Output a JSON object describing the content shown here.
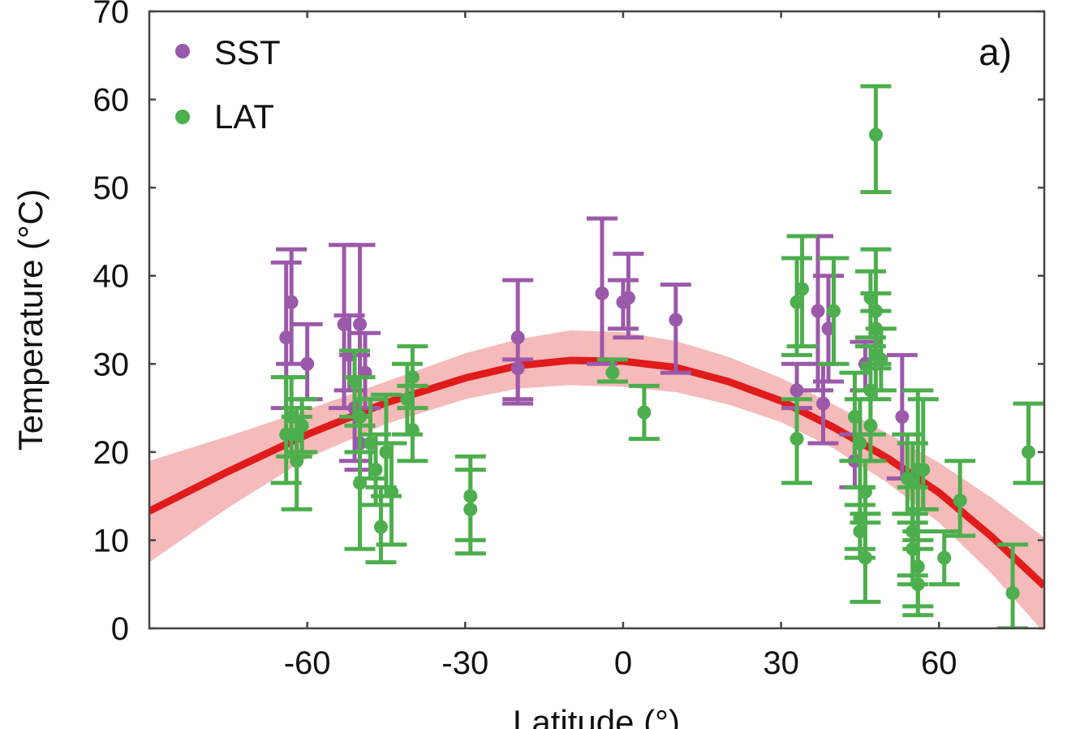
{
  "chart_data": {
    "type": "scatter",
    "title": "",
    "panel_label": "a)",
    "xlabel": "Latitude (°)",
    "ylabel": "Temperature (°C)",
    "xlim": [
      -90,
      80
    ],
    "ylim": [
      0,
      70
    ],
    "xticks": [
      -60,
      -30,
      0,
      30,
      60
    ],
    "yticks": [
      0,
      10,
      20,
      30,
      40,
      50,
      60,
      70
    ],
    "grid": false,
    "legend_position": "top-left",
    "series": [
      {
        "name": "SST",
        "color": "#9b59a9",
        "points": [
          {
            "x": -63,
            "y": 37,
            "lo": 30,
            "hi": 43
          },
          {
            "x": -64,
            "y": 33,
            "lo": 25,
            "hi": 41.5
          },
          {
            "x": -60,
            "y": 30,
            "lo": 26,
            "hi": 34.5
          },
          {
            "x": -53,
            "y": 34.5,
            "lo": 25,
            "hi": 43.5
          },
          {
            "x": -50,
            "y": 34.5,
            "lo": 25,
            "hi": 43.5
          },
          {
            "x": -52,
            "y": 31,
            "lo": 27,
            "hi": 35.5
          },
          {
            "x": -49,
            "y": 29,
            "lo": 25,
            "hi": 33.5
          },
          {
            "x": -51,
            "y": 25,
            "lo": 19,
            "hi": 31
          },
          {
            "x": -50,
            "y": 21,
            "lo": 18,
            "hi": 25
          },
          {
            "x": -20,
            "y": 33,
            "lo": 26,
            "hi": 39.5
          },
          {
            "x": -20,
            "y": 29.5,
            "lo": 25.5,
            "hi": 30.5
          },
          {
            "x": -4,
            "y": 38,
            "lo": 30,
            "hi": 46.5
          },
          {
            "x": 0,
            "y": 37,
            "lo": 34,
            "hi": 39.5
          },
          {
            "x": 1,
            "y": 37.5,
            "lo": 33,
            "hi": 42.5
          },
          {
            "x": 10,
            "y": 35,
            "lo": 29,
            "hi": 39
          },
          {
            "x": 33,
            "y": 27,
            "lo": 25,
            "hi": 30
          },
          {
            "x": 37,
            "y": 36,
            "lo": 27,
            "hi": 44.5
          },
          {
            "x": 39,
            "y": 34,
            "lo": 28,
            "hi": 40
          },
          {
            "x": 38,
            "y": 25.5,
            "lo": 21,
            "hi": 30
          },
          {
            "x": 44,
            "y": 19,
            "lo": 16,
            "hi": 22
          },
          {
            "x": 46,
            "y": 30,
            "lo": 27,
            "hi": 32.5
          },
          {
            "x": 53,
            "y": 24,
            "lo": 17,
            "hi": 31
          }
        ]
      },
      {
        "name": "LAT",
        "color": "#4cae4c",
        "points": [
          {
            "x": -64,
            "y": 22,
            "lo": 16.5,
            "hi": 28.5
          },
          {
            "x": -63,
            "y": 24,
            "lo": 19.5,
            "hi": 28.5
          },
          {
            "x": -62,
            "y": 22,
            "lo": 19.5,
            "hi": 25
          },
          {
            "x": -61,
            "y": 23,
            "lo": 20,
            "hi": 26
          },
          {
            "x": -62,
            "y": 19,
            "lo": 13.5,
            "hi": 24
          },
          {
            "x": -51,
            "y": 28,
            "lo": 24,
            "hi": 31.5
          },
          {
            "x": -50,
            "y": 24,
            "lo": 20,
            "hi": 28.5
          },
          {
            "x": -50,
            "y": 16.5,
            "lo": 9,
            "hi": 23
          },
          {
            "x": -48,
            "y": 21,
            "lo": 17,
            "hi": 26
          },
          {
            "x": -47,
            "y": 18,
            "lo": 14,
            "hi": 22
          },
          {
            "x": -46,
            "y": 11.5,
            "lo": 7.5,
            "hi": 16
          },
          {
            "x": -45,
            "y": 20,
            "lo": 15,
            "hi": 26.5
          },
          {
            "x": -44,
            "y": 15.5,
            "lo": 9.5,
            "hi": 21
          },
          {
            "x": -40,
            "y": 28.5,
            "lo": 25,
            "hi": 32
          },
          {
            "x": -40,
            "y": 22.5,
            "lo": 19,
            "hi": 27.5
          },
          {
            "x": -41,
            "y": 26,
            "lo": 22,
            "hi": 30
          },
          {
            "x": -29,
            "y": 15,
            "lo": 10,
            "hi": 19.5
          },
          {
            "x": -29,
            "y": 13.5,
            "lo": 8.5,
            "hi": 18
          },
          {
            "x": -2,
            "y": 29,
            "lo": 28,
            "hi": 30.5
          },
          {
            "x": 4,
            "y": 24.5,
            "lo": 21.5,
            "hi": 27.5
          },
          {
            "x": 33,
            "y": 21.5,
            "lo": 16.5,
            "hi": 26
          },
          {
            "x": 33,
            "y": 37,
            "lo": 31,
            "hi": 42
          },
          {
            "x": 34,
            "y": 38.5,
            "lo": 32,
            "hi": 44.5
          },
          {
            "x": 40,
            "y": 36,
            "lo": 30,
            "hi": 42
          },
          {
            "x": 44,
            "y": 24,
            "lo": 19,
            "hi": 29
          },
          {
            "x": 45,
            "y": 21,
            "lo": 16,
            "hi": 26
          },
          {
            "x": 45,
            "y": 12.5,
            "lo": 9,
            "hi": 16
          },
          {
            "x": 45,
            "y": 11,
            "lo": 8,
            "hi": 14
          },
          {
            "x": 46,
            "y": 15.5,
            "lo": 12,
            "hi": 19
          },
          {
            "x": 46,
            "y": 8,
            "lo": 3,
            "hi": 13
          },
          {
            "x": 47,
            "y": 37.5,
            "lo": 33,
            "hi": 40.5
          },
          {
            "x": 47,
            "y": 27,
            "lo": 22,
            "hi": 32
          },
          {
            "x": 48,
            "y": 31,
            "lo": 26,
            "hi": 36
          },
          {
            "x": 48,
            "y": 34,
            "lo": 30,
            "hi": 38
          },
          {
            "x": 48,
            "y": 56,
            "lo": 49.5,
            "hi": 61.5
          },
          {
            "x": 49,
            "y": 30.5,
            "lo": 27,
            "hi": 34
          },
          {
            "x": 48,
            "y": 36,
            "lo": 29.5,
            "hi": 43
          },
          {
            "x": 47,
            "y": 23,
            "lo": 19,
            "hi": 27
          },
          {
            "x": 54,
            "y": 17,
            "lo": 13,
            "hi": 22
          },
          {
            "x": 55,
            "y": 16.5,
            "lo": 12,
            "hi": 21
          },
          {
            "x": 55,
            "y": 11,
            "lo": 6,
            "hi": 16
          },
          {
            "x": 55,
            "y": 9,
            "lo": 5,
            "hi": 13
          },
          {
            "x": 56,
            "y": 18,
            "lo": 10,
            "hi": 27
          },
          {
            "x": 56,
            "y": 7,
            "lo": 2.5,
            "hi": 11
          },
          {
            "x": 56,
            "y": 5,
            "lo": 1.5,
            "hi": 9
          },
          {
            "x": 57,
            "y": 18,
            "lo": 13.5,
            "hi": 26
          },
          {
            "x": 61,
            "y": 8,
            "lo": 5,
            "hi": 11
          },
          {
            "x": 64,
            "y": 14.5,
            "lo": 10.5,
            "hi": 19
          },
          {
            "x": 74,
            "y": 4,
            "lo": 0,
            "hi": 9.5
          },
          {
            "x": 77,
            "y": 20,
            "lo": 16.5,
            "hi": 25.5
          }
        ]
      }
    ],
    "fit": {
      "color": "#e01b1b",
      "band_color": "#f4b3b3",
      "points": [
        {
          "x": -90,
          "y": 13.3,
          "lo": 7.5,
          "hi": 19
        },
        {
          "x": -75,
          "y": 17.8,
          "lo": 13.7,
          "hi": 21.8
        },
        {
          "x": -60,
          "y": 22.0,
          "lo": 19.3,
          "hi": 24.8
        },
        {
          "x": -45,
          "y": 25.6,
          "lo": 23.2,
          "hi": 28.0
        },
        {
          "x": -30,
          "y": 28.4,
          "lo": 26.0,
          "hi": 31.2
        },
        {
          "x": -20,
          "y": 29.8,
          "lo": 27.2,
          "hi": 32.8
        },
        {
          "x": -10,
          "y": 30.4,
          "lo": 27.6,
          "hi": 33.8
        },
        {
          "x": 0,
          "y": 30.3,
          "lo": 27.4,
          "hi": 33.6
        },
        {
          "x": 10,
          "y": 29.6,
          "lo": 26.8,
          "hi": 32.6
        },
        {
          "x": 20,
          "y": 28.0,
          "lo": 25.4,
          "hi": 30.8
        },
        {
          "x": 30,
          "y": 25.8,
          "lo": 23.4,
          "hi": 28.4
        },
        {
          "x": 40,
          "y": 22.8,
          "lo": 20.4,
          "hi": 25.4
        },
        {
          "x": 50,
          "y": 19.4,
          "lo": 16.6,
          "hi": 22.2
        },
        {
          "x": 60,
          "y": 15.4,
          "lo": 12.0,
          "hi": 18.8
        },
        {
          "x": 70,
          "y": 10.4,
          "lo": 6.2,
          "hi": 14.8
        },
        {
          "x": 80,
          "y": 4.8,
          "lo": -0.5,
          "hi": 10.3
        }
      ]
    }
  }
}
